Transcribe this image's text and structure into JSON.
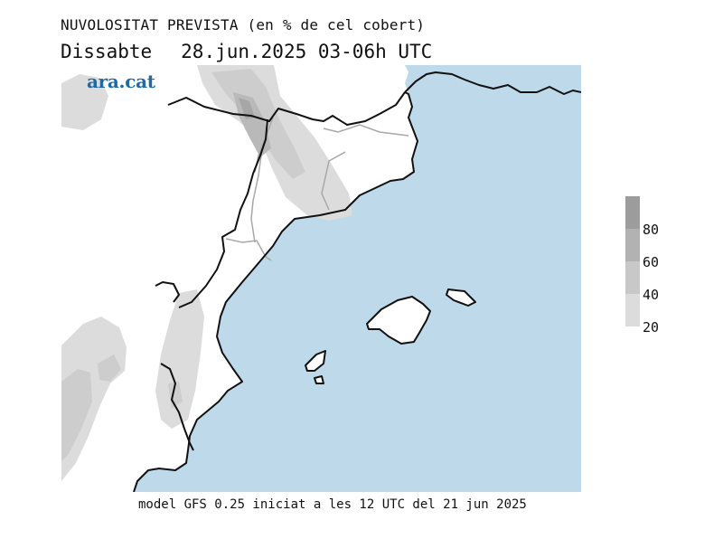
{
  "header": {
    "title": "NUVOLOSITAT PREVISTA (en % de cel cobert)",
    "day": "Dissabte",
    "datetime": "28.jun.2025 03-06h UTC"
  },
  "logo": {
    "text": "ara.cat",
    "color": "#1d6aa5"
  },
  "legend": {
    "ticks": [
      "80",
      "60",
      "40",
      "20"
    ],
    "colors": [
      "#9c9c9c",
      "#b2b2b2",
      "#c8c8c8",
      "#dcdcdc"
    ]
  },
  "footer": {
    "text": "model GFS 0.25 iniciat a les 12 UTC del 21 jun 2025"
  },
  "colors": {
    "sea": "#bdd9ea",
    "land": "#ffffff",
    "coast": "#111111",
    "border": "#a8a8a8"
  }
}
